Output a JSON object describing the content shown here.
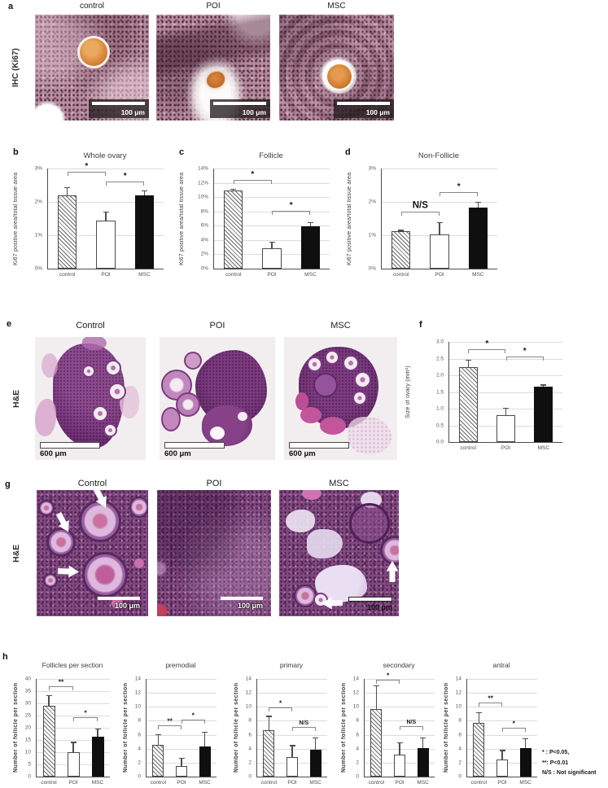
{
  "panels": {
    "a": {
      "letter": "a",
      "side_label": "IHC (Ki67)",
      "columns": [
        "control",
        "POI",
        "MSC"
      ],
      "scale_label": "100 μm"
    },
    "b": {
      "letter": "b"
    },
    "c": {
      "letter": "c"
    },
    "d": {
      "letter": "d"
    },
    "e": {
      "letter": "e",
      "side_label": "H&E",
      "columns": [
        "Control",
        "POI",
        "MSC"
      ],
      "scale_label": "600 μm"
    },
    "f": {
      "letter": "f"
    },
    "g": {
      "letter": "g",
      "side_label": "H&E",
      "columns": [
        "Control",
        "POI",
        "MSC"
      ],
      "scale_label": "100 μm"
    },
    "h": {
      "letter": "h"
    }
  },
  "legend": {
    "lines": [
      "*  : P<0.05,",
      "**: P<0.01",
      "N/S : Not significant"
    ]
  },
  "colors": {
    "control_bar_hatch": "#6e6e6e",
    "poi_bar": "#ffffff",
    "msc_bar": "#0f0f0f",
    "ihc_stain": "#d07b2e",
    "he_tissue": "#81477f",
    "axis": "#4d4d4d",
    "gridline": "#dcdcdc"
  },
  "chart_data": [
    {
      "id": "b",
      "type": "bar",
      "title": "Whole ovary",
      "ylabel": "Ki67 positive area/total tissue area",
      "categories": [
        "control",
        "POI",
        "MSC"
      ],
      "values": [
        2.2,
        1.45,
        2.2
      ],
      "errors": [
        0.25,
        0.25,
        0.15
      ],
      "ylim": [
        0,
        3
      ],
      "ystep": 1,
      "tick_suffix": "%",
      "tick_decimals": 0,
      "grid": true,
      "bar_styles": [
        "hatch",
        "white",
        "black"
      ],
      "significance": [
        {
          "from": 0,
          "to": 1,
          "label": "*",
          "y": 2.9
        },
        {
          "from": 1,
          "to": 2,
          "label": "*",
          "y": 2.62
        }
      ]
    },
    {
      "id": "c",
      "type": "bar",
      "title": "Follicle",
      "ylabel": "Ki67 positive area/total tissue area",
      "categories": [
        "control",
        "POI",
        "MSC"
      ],
      "values": [
        10.9,
        2.8,
        5.9
      ],
      "errors": [
        0.3,
        1.0,
        0.6
      ],
      "ylim": [
        0,
        14
      ],
      "ystep": 2,
      "tick_suffix": "%",
      "tick_decimals": 0,
      "grid": true,
      "bar_styles": [
        "hatch",
        "white",
        "black"
      ],
      "significance": [
        {
          "from": 0,
          "to": 1,
          "label": "*",
          "y": 12.4
        },
        {
          "from": 1,
          "to": 2,
          "label": "*",
          "y": 8.1
        }
      ]
    },
    {
      "id": "d",
      "type": "bar",
      "title": "Non-Follicle",
      "ylabel": "Ki67 positive area/total tissue area",
      "categories": [
        "control",
        "POI",
        "MSC"
      ],
      "values": [
        1.12,
        1.03,
        1.82
      ],
      "errors": [
        0.04,
        0.36,
        0.18
      ],
      "ylim": [
        0,
        3
      ],
      "ystep": 1,
      "tick_suffix": "%",
      "tick_decimals": 0,
      "grid": true,
      "bar_styles": [
        "hatch",
        "white",
        "black"
      ],
      "significance": [
        {
          "from": 0,
          "to": 1,
          "label": "N/S",
          "y": 1.7
        },
        {
          "from": 1,
          "to": 2,
          "label": "*",
          "y": 2.3
        }
      ]
    },
    {
      "id": "f",
      "type": "bar",
      "title": "",
      "ylabel": "Size of ovary (mm²)",
      "categories": [
        "control",
        "POI",
        "MSC"
      ],
      "values": [
        2.25,
        0.8,
        1.66
      ],
      "errors": [
        0.22,
        0.23,
        0.06
      ],
      "ylim": [
        0,
        3
      ],
      "ystep": 0.5,
      "tick_suffix": "",
      "tick_decimals": 1,
      "grid": true,
      "bar_styles": [
        "hatch",
        "white",
        "black"
      ],
      "significance": [
        {
          "from": 0,
          "to": 1,
          "label": "*",
          "y": 2.78
        },
        {
          "from": 1,
          "to": 2,
          "label": "*",
          "y": 2.55
        }
      ]
    },
    {
      "id": "h1",
      "type": "bar",
      "title": "Follicles per section",
      "ylabel": "Number of follicle per section",
      "categories": [
        "control",
        "POI",
        "MSC"
      ],
      "values": [
        29,
        10,
        16.3
      ],
      "errors": [
        4.5,
        4.2,
        3.4
      ],
      "ylim": [
        0,
        40
      ],
      "ystep": 5,
      "tick_suffix": "",
      "tick_decimals": 0,
      "grid": true,
      "bar_styles": [
        "hatch",
        "white",
        "black"
      ],
      "significance": [
        {
          "from": 0,
          "to": 1,
          "label": "**",
          "y": 37
        },
        {
          "from": 1,
          "to": 2,
          "label": "*",
          "y": 24.3
        }
      ]
    },
    {
      "id": "h2",
      "type": "bar",
      "title": "premodial",
      "ylabel": "Number of follicle per section",
      "categories": [
        "control",
        "POI",
        "MSC"
      ],
      "values": [
        4.6,
        1.5,
        4.3
      ],
      "errors": [
        1.5,
        1.2,
        2.1
      ],
      "ylim": [
        0,
        14
      ],
      "ystep": 2,
      "tick_suffix": "",
      "tick_decimals": 0,
      "grid": true,
      "bar_styles": [
        "hatch",
        "white",
        "black"
      ],
      "significance": [
        {
          "from": 0,
          "to": 1,
          "label": "**",
          "y": 7.3
        },
        {
          "from": 1,
          "to": 2,
          "label": "*",
          "y": 8.2
        }
      ]
    },
    {
      "id": "h3",
      "type": "bar",
      "title": "primary",
      "ylabel": "Number of follicle per section",
      "categories": [
        "control",
        "POI",
        "MSC"
      ],
      "values": [
        6.7,
        2.8,
        3.9
      ],
      "errors": [
        2.0,
        1.7,
        1.7
      ],
      "ylim": [
        0,
        14
      ],
      "ystep": 2,
      "tick_suffix": "",
      "tick_decimals": 0,
      "grid": true,
      "bar_styles": [
        "hatch",
        "white",
        "black"
      ],
      "significance": [
        {
          "from": 0,
          "to": 1,
          "label": "*",
          "y": 9.9
        },
        {
          "from": 1,
          "to": 2,
          "label": "N/S",
          "y": 7.1
        }
      ]
    },
    {
      "id": "h4",
      "type": "bar",
      "title": "secondary",
      "ylabel": "Number of follicle per section",
      "categories": [
        "control",
        "POI",
        "MSC"
      ],
      "values": [
        9.7,
        3.2,
        4.1
      ],
      "errors": [
        3.4,
        1.7,
        1.5
      ],
      "ylim": [
        0,
        14
      ],
      "ystep": 2,
      "tick_suffix": "",
      "tick_decimals": 0,
      "grid": true,
      "bar_styles": [
        "hatch",
        "white",
        "black"
      ],
      "significance": [
        {
          "from": 0,
          "to": 1,
          "label": "*",
          "y": 13.9
        },
        {
          "from": 1,
          "to": 2,
          "label": "N/S",
          "y": 7.2
        }
      ]
    },
    {
      "id": "h5",
      "type": "bar",
      "title": "antral",
      "ylabel": "Number of follicle per section",
      "categories": [
        "control",
        "POI",
        "MSC"
      ],
      "values": [
        7.7,
        2.4,
        4.1
      ],
      "errors": [
        1.5,
        1.4,
        1.4
      ],
      "ylim": [
        0,
        14
      ],
      "ystep": 2,
      "tick_suffix": "",
      "tick_decimals": 0,
      "grid": true,
      "bar_styles": [
        "hatch",
        "white",
        "black"
      ],
      "significance": [
        {
          "from": 0,
          "to": 1,
          "label": "**",
          "y": 10.6
        },
        {
          "from": 1,
          "to": 2,
          "label": "*",
          "y": 7.0
        }
      ]
    }
  ]
}
